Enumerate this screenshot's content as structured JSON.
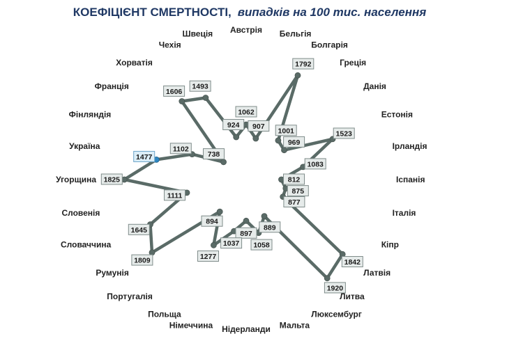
{
  "chart_data": {
    "type": "radar",
    "title": "КОЕФІЦІЄНТ СМЕРТНОСТІ,",
    "subtitle": "випадків на 100 тис. населення",
    "categories": [
      "Австрія",
      "Бельгія",
      "Болгарія",
      "Греція",
      "Данія",
      "Естонія",
      "Ірландія",
      "Іспанія",
      "Італія",
      "Кіпр",
      "Латвія",
      "Литва",
      "Люксембург",
      "Мальта",
      "Нідерланди",
      "Німеччина",
      "Польща",
      "Португалія",
      "Румунія",
      "Словаччина",
      "Словенія",
      "Угорщина",
      "Україна",
      "Фінляндія",
      "Франція",
      "Хорватія",
      "Чехія",
      "Швеція"
    ],
    "values": [
      1062,
      907,
      1792,
      1001,
      969,
      1523,
      1083,
      812,
      875,
      877,
      1842,
      1920,
      889,
      1058,
      897,
      1037,
      1277,
      894,
      1809,
      1645,
      1111,
      1825,
      1477,
      1102,
      738,
      1606,
      1493,
      924
    ],
    "highlight_category": "Україна",
    "grid": false,
    "legend": false,
    "colors": {
      "line": "#5a6b67",
      "marker": "#5a6b67",
      "highlight_marker": "#2e86c1",
      "title": "#1f3864"
    }
  }
}
